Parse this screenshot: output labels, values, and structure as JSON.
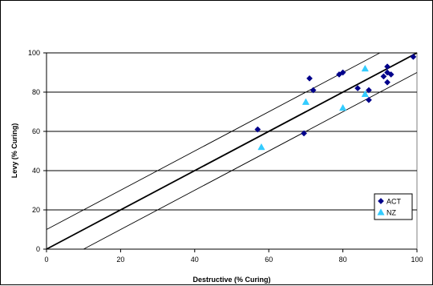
{
  "chart_data": {
    "type": "scatter",
    "xlabel": "Destructive (% Curing)",
    "ylabel": "Levy (% Curing)",
    "xlim": [
      0,
      100
    ],
    "ylim": [
      0,
      100
    ],
    "x_ticks": [
      "0",
      "20",
      "40",
      "60",
      "80",
      "100"
    ],
    "y_ticks": [
      "0",
      "20",
      "40",
      "60",
      "80",
      "100"
    ],
    "grid": "horizontal",
    "legend_position": "bottom-right",
    "series": [
      {
        "name": "ACT",
        "marker": "diamond",
        "color": "#00008B",
        "points": [
          [
            57,
            61
          ],
          [
            69.5,
            59
          ],
          [
            71,
            87
          ],
          [
            72,
            81
          ],
          [
            79,
            89
          ],
          [
            80,
            90
          ],
          [
            84,
            82
          ],
          [
            87,
            81
          ],
          [
            87,
            76
          ],
          [
            91,
            88
          ],
          [
            92,
            93
          ],
          [
            92,
            85
          ],
          [
            92,
            90
          ],
          [
            93,
            89
          ],
          [
            99,
            98
          ]
        ]
      },
      {
        "name": "NZ",
        "marker": "triangle",
        "color": "#33CCFF",
        "points": [
          [
            58,
            52
          ],
          [
            70,
            75
          ],
          [
            80,
            72
          ],
          [
            86,
            92
          ],
          [
            86,
            79
          ]
        ]
      }
    ],
    "reference_lines": [
      {
        "kind": "identity",
        "from": [
          0,
          0
        ],
        "to": [
          100,
          100
        ],
        "weight": "bold"
      },
      {
        "kind": "upper",
        "from": [
          0,
          10
        ],
        "to": [
          90,
          100
        ],
        "weight": "thin"
      },
      {
        "kind": "lower",
        "from": [
          10,
          0
        ],
        "to": [
          100,
          90
        ],
        "weight": "thin"
      }
    ]
  }
}
